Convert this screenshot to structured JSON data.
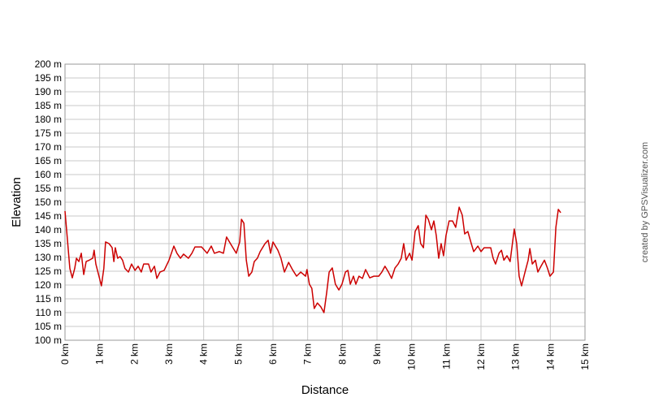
{
  "chart_data": {
    "type": "line",
    "x_label": "Distance",
    "y_label": "Elevation",
    "credit": "created by GPSVisualizer.com",
    "grid": true,
    "xlim": [
      0,
      15
    ],
    "ylim": [
      100,
      200
    ],
    "xticks": [
      {
        "value": 0,
        "label": "0 km"
      },
      {
        "value": 1,
        "label": "1 km"
      },
      {
        "value": 2,
        "label": "2 km"
      },
      {
        "value": 3,
        "label": "3 km"
      },
      {
        "value": 4,
        "label": "4 km"
      },
      {
        "value": 5,
        "label": "5 km"
      },
      {
        "value": 6,
        "label": "6 km"
      },
      {
        "value": 7,
        "label": "7 km"
      },
      {
        "value": 8,
        "label": "8 km"
      },
      {
        "value": 9,
        "label": "9 km"
      },
      {
        "value": 10,
        "label": "10 km"
      },
      {
        "value": 11,
        "label": "11 km"
      },
      {
        "value": 12,
        "label": "12 km"
      },
      {
        "value": 13,
        "label": "13 km"
      },
      {
        "value": 14,
        "label": "14 km"
      },
      {
        "value": 15,
        "label": "15 km"
      }
    ],
    "yticks": [
      {
        "value": 100,
        "label": "100 m"
      },
      {
        "value": 105,
        "label": "105 m"
      },
      {
        "value": 110,
        "label": "110 m"
      },
      {
        "value": 115,
        "label": "115 m"
      },
      {
        "value": 120,
        "label": "120 m"
      },
      {
        "value": 125,
        "label": "125 m"
      },
      {
        "value": 130,
        "label": "130 m"
      },
      {
        "value": 135,
        "label": "135 m"
      },
      {
        "value": 140,
        "label": "140 m"
      },
      {
        "value": 145,
        "label": "145 m"
      },
      {
        "value": 150,
        "label": "150 m"
      },
      {
        "value": 155,
        "label": "155 m"
      },
      {
        "value": 160,
        "label": "160 m"
      },
      {
        "value": 165,
        "label": "165 m"
      },
      {
        "value": 170,
        "label": "170 m"
      },
      {
        "value": 175,
        "label": "175 m"
      },
      {
        "value": 180,
        "label": "180 m"
      },
      {
        "value": 185,
        "label": "185 m"
      },
      {
        "value": 190,
        "label": "190 m"
      },
      {
        "value": 195,
        "label": "195 m"
      },
      {
        "value": 200,
        "label": "200 m"
      }
    ],
    "color": "#cc0000",
    "x": [
      0,
      0.05,
      0.14,
      0.21,
      0.28,
      0.33,
      0.4,
      0.47,
      0.54,
      0.61,
      0.7,
      0.8,
      0.84,
      0.89,
      0.98,
      1.05,
      1.12,
      1.17,
      1.27,
      1.36,
      1.41,
      1.45,
      1.52,
      1.59,
      1.66,
      1.73,
      1.83,
      1.92,
      2.02,
      2.11,
      2.2,
      2.27,
      2.41,
      2.48,
      2.58,
      2.65,
      2.74,
      2.86,
      3.0,
      3.14,
      3.23,
      3.33,
      3.42,
      3.56,
      3.66,
      3.75,
      3.94,
      4.1,
      4.22,
      4.31,
      4.45,
      4.57,
      4.66,
      4.8,
      4.94,
      5.04,
      5.09,
      5.16,
      5.23,
      5.3,
      5.39,
      5.46,
      5.55,
      5.63,
      5.77,
      5.86,
      5.93,
      6.0,
      6.14,
      6.23,
      6.33,
      6.45,
      6.56,
      6.68,
      6.8,
      6.94,
      6.98,
      7.05,
      7.12,
      7.19,
      7.28,
      7.38,
      7.47,
      7.55,
      7.62,
      7.71,
      7.8,
      7.9,
      7.99,
      8.09,
      8.16,
      8.23,
      8.32,
      8.39,
      8.48,
      8.58,
      8.67,
      8.79,
      8.91,
      9.05,
      9.14,
      9.23,
      9.33,
      9.42,
      9.52,
      9.61,
      9.7,
      9.77,
      9.84,
      9.94,
      10.01,
      10.1,
      10.19,
      10.26,
      10.34,
      10.41,
      10.48,
      10.57,
      10.64,
      10.71,
      10.78,
      10.85,
      10.92,
      10.99,
      11.08,
      11.18,
      11.27,
      11.37,
      11.46,
      11.53,
      11.62,
      11.72,
      11.79,
      11.91,
      12.0,
      12.09,
      12.28,
      12.35,
      12.42,
      12.52,
      12.59,
      12.66,
      12.75,
      12.84,
      12.96,
      13.03,
      13.1,
      13.17,
      13.27,
      13.36,
      13.41,
      13.48,
      13.57,
      13.64,
      13.73,
      13.83,
      13.92,
      13.99,
      14.09,
      14.16,
      14.23,
      14.3
    ],
    "values": [
      146.8,
      139.4,
      126,
      122.6,
      126,
      129.7,
      128.5,
      131.5,
      123.8,
      128.5,
      129,
      129.7,
      132.6,
      127.6,
      123.2,
      119.7,
      126,
      135.6,
      135,
      133.5,
      128.5,
      133.5,
      129.7,
      130.3,
      129,
      126,
      124.7,
      127.6,
      125.3,
      126.8,
      124.7,
      127.6,
      127.6,
      124.7,
      126.8,
      122.4,
      124.7,
      125.3,
      129,
      134.1,
      131.5,
      129.7,
      131.2,
      129.7,
      131.5,
      133.8,
      133.8,
      131.5,
      134.1,
      131.5,
      132.1,
      131.5,
      137.4,
      134.4,
      131.5,
      135.6,
      143.8,
      142.4,
      129,
      123.2,
      124.7,
      128.5,
      129.7,
      132.1,
      135,
      136.2,
      131.5,
      135.6,
      132.6,
      129.7,
      124.7,
      128.2,
      125.6,
      123.2,
      124.7,
      123.2,
      125.6,
      120.3,
      118.8,
      111.5,
      113.5,
      112.1,
      110,
      117.4,
      124.7,
      126.2,
      120.3,
      118.2,
      120.3,
      124.7,
      125.3,
      120.3,
      123.2,
      120.3,
      123.2,
      122.4,
      125.6,
      122.6,
      123.2,
      123.2,
      124.7,
      126.8,
      124.7,
      122.4,
      126.2,
      127.6,
      129.7,
      135,
      129,
      131.5,
      129,
      139.4,
      141.5,
      135,
      133.5,
      145.3,
      143.8,
      140,
      143.2,
      137.9,
      129.7,
      135,
      130.6,
      137.9,
      143.2,
      143.2,
      140.9,
      148.2,
      145.3,
      138.5,
      139.4,
      135,
      132.1,
      134.1,
      132.1,
      133.5,
      133.5,
      129.7,
      127.6,
      131.5,
      132.6,
      129,
      130.6,
      128.5,
      140.3,
      135,
      123.2,
      119.7,
      124.7,
      129,
      133.2,
      127.6,
      129,
      124.7,
      126.8,
      129,
      126,
      123.2,
      124.7,
      140.9,
      147.4,
      146.2
    ]
  }
}
